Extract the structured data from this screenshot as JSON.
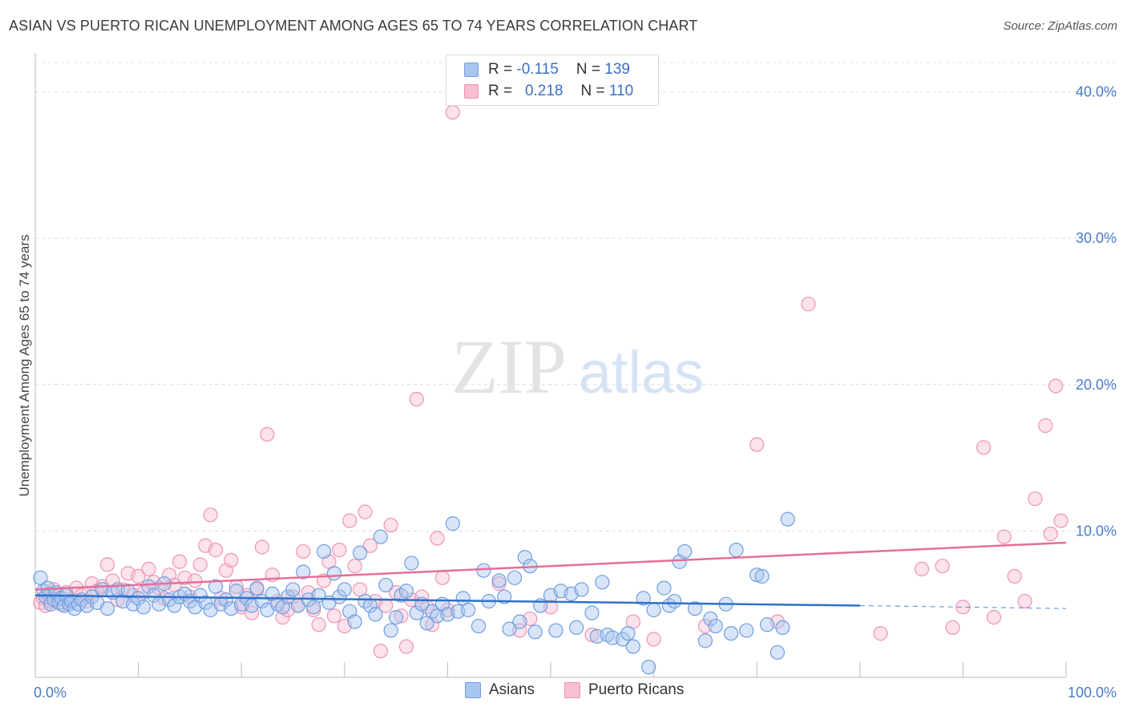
{
  "title": "ASIAN VS PUERTO RICAN UNEMPLOYMENT AMONG AGES 65 TO 74 YEARS CORRELATION CHART",
  "source": "Source: ZipAtlas.com",
  "watermark": {
    "zip": "ZIP",
    "atlas": "atlas"
  },
  "legend": {
    "asians": {
      "r_label": "R =",
      "r_value": "-0.115",
      "n_label": "N =",
      "n_value": "139",
      "color": "#a9c6f0"
    },
    "puerto_ricans": {
      "r_label": "R =",
      "r_value": "0.218",
      "n_label": "N =",
      "n_value": "110",
      "color": "#f7bfd2"
    }
  },
  "bottom_legend": {
    "asians": "Asians",
    "puerto_ricans": "Puerto Ricans"
  },
  "colors": {
    "asian_fill": "#a9c6f0",
    "asian_stroke": "#6f9ee0",
    "asian_line": "#2f72c8",
    "pr_fill": "#f7bfd2",
    "pr_stroke": "#ef93b3",
    "pr_line": "#e56e98",
    "axis_text": "#4a7bc8",
    "grid": "#dcdcdc"
  },
  "chart_data": {
    "type": "scatter",
    "xlabel": "",
    "ylabel": "Unemployment Among Ages 65 to 74 years",
    "xlim": [
      0,
      100
    ],
    "ylim": [
      0,
      42
    ],
    "x_tick_labels": [
      "0.0%",
      "100.0%"
    ],
    "y_ticks": [
      10,
      20,
      30,
      40
    ],
    "y_tick_labels": [
      "10.0%",
      "20.0%",
      "30.0%",
      "40.0%"
    ],
    "grid": true,
    "legend_position": "top-center",
    "series": [
      {
        "name": "Asians",
        "r": -0.115,
        "n": 139,
        "trend": {
          "x": [
            0,
            80
          ],
          "y": [
            5.6,
            4.9
          ],
          "dashed_extension": [
            80,
            100
          ],
          "dashed_y_end": 4.7
        },
        "points": [
          [
            0.5,
            6.8
          ],
          [
            0.8,
            5.9
          ],
          [
            1.0,
            5.5
          ],
          [
            1.2,
            6.1
          ],
          [
            1.5,
            5.0
          ],
          [
            1.8,
            5.3
          ],
          [
            2.0,
            5.8
          ],
          [
            2.3,
            5.1
          ],
          [
            2.5,
            5.4
          ],
          [
            2.8,
            4.9
          ],
          [
            3.0,
            5.6
          ],
          [
            3.3,
            5.0
          ],
          [
            3.5,
            5.2
          ],
          [
            3.8,
            4.7
          ],
          [
            4.2,
            5.0
          ],
          [
            4.5,
            5.3
          ],
          [
            5.0,
            4.9
          ],
          [
            5.5,
            5.5
          ],
          [
            6.0,
            5.1
          ],
          [
            6.5,
            6.0
          ],
          [
            7.0,
            4.7
          ],
          [
            7.5,
            5.8
          ],
          [
            8.0,
            6.0
          ],
          [
            8.5,
            5.2
          ],
          [
            9.0,
            5.9
          ],
          [
            9.5,
            5.0
          ],
          [
            10.0,
            5.4
          ],
          [
            10.5,
            4.8
          ],
          [
            11.0,
            6.2
          ],
          [
            11.5,
            5.6
          ],
          [
            12.0,
            5.0
          ],
          [
            12.5,
            6.4
          ],
          [
            13.0,
            5.3
          ],
          [
            13.5,
            4.9
          ],
          [
            14.0,
            5.5
          ],
          [
            14.5,
            5.7
          ],
          [
            15.0,
            5.2
          ],
          [
            15.5,
            4.8
          ],
          [
            16.0,
            5.6
          ],
          [
            16.5,
            5.1
          ],
          [
            17.0,
            4.6
          ],
          [
            17.5,
            6.2
          ],
          [
            18.0,
            5.0
          ],
          [
            18.5,
            5.3
          ],
          [
            19.0,
            4.7
          ],
          [
            19.5,
            5.9
          ],
          [
            20.0,
            5.0
          ],
          [
            20.5,
            5.4
          ],
          [
            21.0,
            4.9
          ],
          [
            21.5,
            6.1
          ],
          [
            22.0,
            5.2
          ],
          [
            22.5,
            4.6
          ],
          [
            23.0,
            5.7
          ],
          [
            23.5,
            5.0
          ],
          [
            24.0,
            4.8
          ],
          [
            24.5,
            5.5
          ],
          [
            25.0,
            6.0
          ],
          [
            25.5,
            4.9
          ],
          [
            26.0,
            7.2
          ],
          [
            26.5,
            5.3
          ],
          [
            27.0,
            4.8
          ],
          [
            27.5,
            5.6
          ],
          [
            28.0,
            8.6
          ],
          [
            28.5,
            5.1
          ],
          [
            29.0,
            7.1
          ],
          [
            29.5,
            5.5
          ],
          [
            30.0,
            6.0
          ],
          [
            30.5,
            4.5
          ],
          [
            31.0,
            3.8
          ],
          [
            31.5,
            8.5
          ],
          [
            32.0,
            5.2
          ],
          [
            32.5,
            4.9
          ],
          [
            33.0,
            4.3
          ],
          [
            33.5,
            9.6
          ],
          [
            34.0,
            6.3
          ],
          [
            34.5,
            3.2
          ],
          [
            35.0,
            4.1
          ],
          [
            35.5,
            5.6
          ],
          [
            36.0,
            5.9
          ],
          [
            36.5,
            7.8
          ],
          [
            37.0,
            4.4
          ],
          [
            37.5,
            5.0
          ],
          [
            38.0,
            3.7
          ],
          [
            38.5,
            4.5
          ],
          [
            39.0,
            4.2
          ],
          [
            39.5,
            5.0
          ],
          [
            40.0,
            4.3
          ],
          [
            40.5,
            10.5
          ],
          [
            41.0,
            4.5
          ],
          [
            41.5,
            5.4
          ],
          [
            42.0,
            4.6
          ],
          [
            43.0,
            3.5
          ],
          [
            43.5,
            7.3
          ],
          [
            44.0,
            5.2
          ],
          [
            45.0,
            6.6
          ],
          [
            45.5,
            5.5
          ],
          [
            46.0,
            3.3
          ],
          [
            46.5,
            6.8
          ],
          [
            47.0,
            3.8
          ],
          [
            47.5,
            8.2
          ],
          [
            48.0,
            7.6
          ],
          [
            48.5,
            3.1
          ],
          [
            49.0,
            4.9
          ],
          [
            50.0,
            5.6
          ],
          [
            50.5,
            3.2
          ],
          [
            51.0,
            5.9
          ],
          [
            52.0,
            5.7
          ],
          [
            52.5,
            3.4
          ],
          [
            53.0,
            6.0
          ],
          [
            54.0,
            4.4
          ],
          [
            54.5,
            2.8
          ],
          [
            55.0,
            6.5
          ],
          [
            55.5,
            2.9
          ],
          [
            56.0,
            2.7
          ],
          [
            57.0,
            2.6
          ],
          [
            57.5,
            3.0
          ],
          [
            58.0,
            2.1
          ],
          [
            59.0,
            5.4
          ],
          [
            59.5,
            0.7
          ],
          [
            60.0,
            4.6
          ],
          [
            61.0,
            6.1
          ],
          [
            61.5,
            4.9
          ],
          [
            62.0,
            5.2
          ],
          [
            62.5,
            7.9
          ],
          [
            63.0,
            8.6
          ],
          [
            64.0,
            4.7
          ],
          [
            65.0,
            2.5
          ],
          [
            65.5,
            4.0
          ],
          [
            66.0,
            3.5
          ],
          [
            67.0,
            5.0
          ],
          [
            67.5,
            3.0
          ],
          [
            68.0,
            8.7
          ],
          [
            69.0,
            3.2
          ],
          [
            70.0,
            7.0
          ],
          [
            70.5,
            6.9
          ],
          [
            71.0,
            3.6
          ],
          [
            72.0,
            1.7
          ],
          [
            72.5,
            3.4
          ],
          [
            73.0,
            10.8
          ]
        ]
      },
      {
        "name": "Puerto Ricans",
        "r": 0.218,
        "n": 110,
        "trend": {
          "x": [
            0,
            100
          ],
          "y": [
            6.0,
            9.2
          ]
        },
        "points": [
          [
            0.5,
            5.1
          ],
          [
            0.8,
            5.4
          ],
          [
            1.0,
            4.9
          ],
          [
            1.3,
            5.7
          ],
          [
            1.5,
            5.2
          ],
          [
            1.8,
            6.0
          ],
          [
            2.0,
            5.5
          ],
          [
            2.5,
            5.0
          ],
          [
            3.0,
            5.8
          ],
          [
            3.5,
            5.3
          ],
          [
            4.0,
            6.1
          ],
          [
            4.5,
            5.6
          ],
          [
            5.0,
            5.2
          ],
          [
            5.5,
            6.4
          ],
          [
            6.0,
            5.9
          ],
          [
            6.5,
            6.2
          ],
          [
            7.0,
            7.7
          ],
          [
            7.5,
            6.6
          ],
          [
            8.0,
            5.3
          ],
          [
            8.5,
            6.0
          ],
          [
            9.0,
            7.1
          ],
          [
            9.5,
            5.6
          ],
          [
            10.0,
            6.9
          ],
          [
            10.5,
            5.8
          ],
          [
            11.0,
            7.4
          ],
          [
            11.5,
            6.5
          ],
          [
            12.0,
            6.1
          ],
          [
            12.5,
            5.4
          ],
          [
            13.0,
            7.0
          ],
          [
            13.5,
            6.3
          ],
          [
            14.0,
            7.9
          ],
          [
            14.5,
            6.8
          ],
          [
            15.0,
            5.5
          ],
          [
            15.5,
            6.6
          ],
          [
            16.0,
            7.7
          ],
          [
            16.5,
            9.0
          ],
          [
            17.0,
            11.1
          ],
          [
            17.5,
            8.7
          ],
          [
            18.0,
            5.4
          ],
          [
            18.5,
            7.3
          ],
          [
            19.0,
            8.0
          ],
          [
            19.5,
            6.2
          ],
          [
            20.0,
            4.8
          ],
          [
            20.5,
            5.6
          ],
          [
            21.0,
            4.4
          ],
          [
            21.5,
            6.0
          ],
          [
            22.0,
            8.9
          ],
          [
            22.5,
            16.6
          ],
          [
            23.0,
            7.0
          ],
          [
            23.5,
            5.2
          ],
          [
            24.0,
            4.1
          ],
          [
            24.5,
            4.6
          ],
          [
            25.0,
            5.5
          ],
          [
            25.5,
            4.9
          ],
          [
            26.0,
            8.6
          ],
          [
            26.5,
            5.8
          ],
          [
            27.0,
            4.6
          ],
          [
            27.5,
            3.6
          ],
          [
            28.0,
            6.6
          ],
          [
            28.5,
            7.9
          ],
          [
            29.0,
            4.2
          ],
          [
            29.5,
            8.7
          ],
          [
            30.0,
            3.5
          ],
          [
            30.5,
            10.7
          ],
          [
            31.0,
            7.6
          ],
          [
            31.5,
            6.0
          ],
          [
            32.0,
            11.3
          ],
          [
            32.5,
            9.0
          ],
          [
            33.0,
            5.2
          ],
          [
            33.5,
            1.8
          ],
          [
            34.0,
            4.9
          ],
          [
            34.5,
            10.4
          ],
          [
            35.0,
            5.8
          ],
          [
            35.5,
            4.2
          ],
          [
            36.0,
            2.1
          ],
          [
            36.5,
            5.3
          ],
          [
            37.0,
            19.0
          ],
          [
            37.5,
            5.5
          ],
          [
            38.0,
            4.8
          ],
          [
            38.5,
            3.6
          ],
          [
            39.0,
            9.5
          ],
          [
            39.5,
            6.8
          ],
          [
            40.0,
            4.6
          ],
          [
            40.5,
            38.6
          ],
          [
            45.0,
            6.4
          ],
          [
            47.0,
            3.2
          ],
          [
            48.0,
            4.0
          ],
          [
            50.0,
            4.8
          ],
          [
            54.0,
            2.9
          ],
          [
            58.0,
            3.8
          ],
          [
            60.0,
            2.6
          ],
          [
            65.0,
            3.5
          ],
          [
            70.0,
            15.9
          ],
          [
            72.0,
            3.8
          ],
          [
            75.0,
            25.5
          ],
          [
            82.0,
            3.0
          ],
          [
            86.0,
            7.4
          ],
          [
            88.0,
            7.6
          ],
          [
            89.0,
            3.4
          ],
          [
            90.0,
            4.8
          ],
          [
            92.0,
            15.7
          ],
          [
            93.0,
            4.1
          ],
          [
            94.0,
            9.6
          ],
          [
            95.0,
            6.9
          ],
          [
            96.0,
            5.2
          ],
          [
            97.0,
            12.2
          ],
          [
            98.0,
            17.2
          ],
          [
            98.5,
            9.8
          ],
          [
            99.0,
            19.9
          ],
          [
            99.5,
            10.7
          ]
        ]
      }
    ]
  }
}
